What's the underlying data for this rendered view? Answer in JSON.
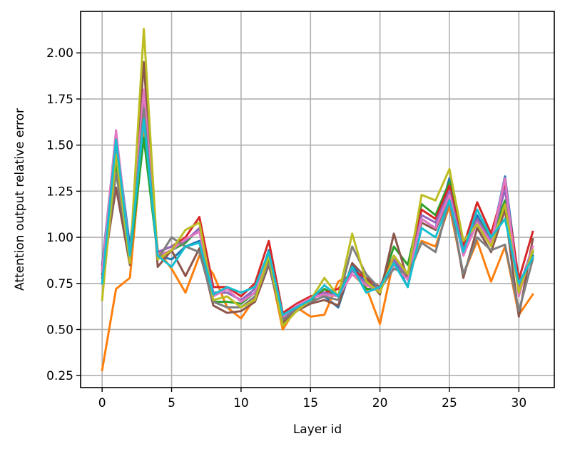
{
  "chart_data": {
    "type": "line",
    "title": "",
    "xlabel": "Layer id",
    "ylabel": "Attention output relative error",
    "xlim": [
      -1.55,
      32.55
    ],
    "ylim": [
      0.185,
      2.225
    ],
    "xticks": [
      0,
      5,
      10,
      15,
      20,
      25,
      30
    ],
    "yticks": [
      0.25,
      0.5,
      0.75,
      1.0,
      1.25,
      1.5,
      1.75,
      2.0
    ],
    "ytick_labels": [
      "0.25",
      "0.50",
      "0.75",
      "1.00",
      "1.25",
      "1.50",
      "1.75",
      "2.00"
    ],
    "grid": true,
    "x": [
      0,
      1,
      2,
      3,
      4,
      5,
      6,
      7,
      8,
      9,
      10,
      11,
      12,
      13,
      14,
      15,
      16,
      17,
      18,
      19,
      20,
      21,
      22,
      23,
      24,
      25,
      26,
      27,
      28,
      29,
      30,
      31
    ],
    "series": [
      {
        "color": "#1f77b4",
        "values": [
          0.85,
          1.55,
          0.95,
          1.62,
          0.9,
          0.88,
          0.95,
          0.98,
          0.7,
          0.7,
          0.66,
          0.7,
          0.93,
          0.56,
          0.62,
          0.65,
          0.68,
          0.62,
          0.85,
          0.75,
          0.73,
          0.88,
          0.73,
          1.1,
          1.05,
          1.32,
          0.95,
          1.12,
          0.98,
          1.33,
          0.75,
          0.9
        ]
      },
      {
        "color": "#ff7f0e",
        "values": [
          0.28,
          0.72,
          0.78,
          1.6,
          0.93,
          0.83,
          0.7,
          0.9,
          0.8,
          0.62,
          0.56,
          0.67,
          0.87,
          0.5,
          0.62,
          0.57,
          0.58,
          0.76,
          0.8,
          0.73,
          0.53,
          0.88,
          0.78,
          0.98,
          0.95,
          1.17,
          0.8,
          0.98,
          0.76,
          0.95,
          0.58,
          0.69
        ]
      },
      {
        "color": "#2ca02c",
        "values": [
          0.8,
          1.4,
          0.88,
          1.54,
          0.9,
          0.93,
          0.97,
          1.05,
          0.65,
          0.65,
          0.64,
          0.7,
          0.88,
          0.53,
          0.6,
          0.65,
          0.72,
          0.68,
          0.83,
          0.72,
          0.72,
          0.95,
          0.85,
          1.18,
          1.12,
          1.3,
          0.97,
          1.1,
          1.0,
          1.2,
          0.7,
          0.92
        ]
      },
      {
        "color": "#d62728",
        "values": [
          0.83,
          1.5,
          0.9,
          1.8,
          0.92,
          0.95,
          1.0,
          1.11,
          0.73,
          0.73,
          0.68,
          0.75,
          0.98,
          0.59,
          0.64,
          0.68,
          0.7,
          0.72,
          0.82,
          0.78,
          0.73,
          0.9,
          0.8,
          1.15,
          1.1,
          1.28,
          0.95,
          1.19,
          1.02,
          1.28,
          0.77,
          1.03
        ]
      },
      {
        "color": "#9467bd",
        "values": [
          0.8,
          1.48,
          0.9,
          1.75,
          0.92,
          0.95,
          0.98,
          1.05,
          0.7,
          0.7,
          0.66,
          0.72,
          0.92,
          0.56,
          0.62,
          0.67,
          0.7,
          0.68,
          0.82,
          0.75,
          0.72,
          0.88,
          0.78,
          1.12,
          1.08,
          1.25,
          0.93,
          1.1,
          0.98,
          1.26,
          0.72,
          0.95
        ]
      },
      {
        "color": "#8c564b",
        "values": [
          0.78,
          1.27,
          0.85,
          1.95,
          0.84,
          0.93,
          0.79,
          0.94,
          0.63,
          0.59,
          0.6,
          0.65,
          0.85,
          0.54,
          0.6,
          0.64,
          0.66,
          0.63,
          0.86,
          0.78,
          0.69,
          1.02,
          0.77,
          1.08,
          1.04,
          1.22,
          0.78,
          1.05,
          0.92,
          1.15,
          0.57,
          0.99
        ]
      },
      {
        "color": "#e377c2",
        "values": [
          0.82,
          1.58,
          0.9,
          1.8,
          0.9,
          0.93,
          0.99,
          1.03,
          0.68,
          0.72,
          0.65,
          0.7,
          0.92,
          0.57,
          0.63,
          0.67,
          0.69,
          0.68,
          0.8,
          0.74,
          0.71,
          0.85,
          0.77,
          1.1,
          1.05,
          1.23,
          0.9,
          1.08,
          0.97,
          1.32,
          0.68,
          0.95
        ]
      },
      {
        "color": "#7f7f7f",
        "values": [
          0.75,
          1.35,
          0.88,
          1.7,
          0.88,
          1.0,
          0.95,
          0.92,
          0.65,
          0.62,
          0.62,
          0.68,
          0.86,
          0.55,
          0.61,
          0.65,
          0.68,
          0.66,
          0.95,
          0.8,
          0.72,
          0.83,
          0.8,
          0.97,
          0.92,
          1.2,
          0.8,
          1.0,
          0.93,
          0.96,
          0.6,
          0.88
        ]
      },
      {
        "color": "#bcbd22",
        "values": [
          0.66,
          1.45,
          0.86,
          2.13,
          0.88,
          0.93,
          1.04,
          1.08,
          0.66,
          0.68,
          0.62,
          0.66,
          0.9,
          0.52,
          0.6,
          0.66,
          0.78,
          0.68,
          1.02,
          0.76,
          0.7,
          0.9,
          0.8,
          1.23,
          1.2,
          1.37,
          0.98,
          1.07,
          0.95,
          1.18,
          0.7,
          0.93
        ]
      },
      {
        "color": "#17becf",
        "values": [
          0.75,
          1.53,
          0.9,
          1.64,
          0.9,
          0.84,
          0.95,
          0.97,
          0.69,
          0.73,
          0.7,
          0.73,
          0.92,
          0.58,
          0.62,
          0.66,
          0.74,
          0.68,
          0.84,
          0.7,
          0.73,
          0.86,
          0.73,
          1.05,
          1.0,
          1.2,
          0.92,
          1.15,
          1.0,
          1.1,
          0.75,
          0.89
        ]
      }
    ]
  }
}
